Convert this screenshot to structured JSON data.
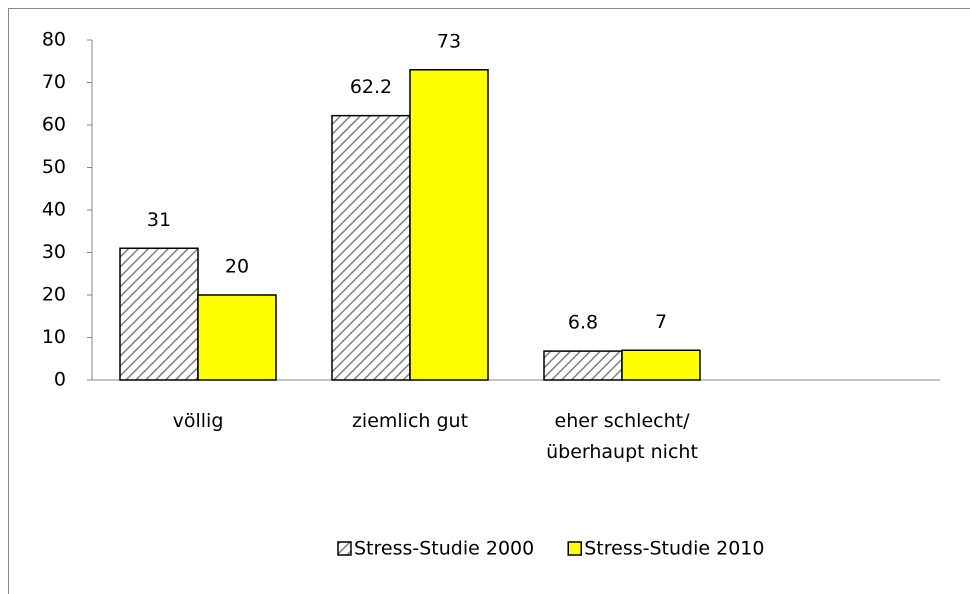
{
  "chart_data": {
    "type": "bar",
    "categories": [
      "völlig",
      "ziemlich gut",
      "eher schlecht/überhaupt nicht",
      null
    ],
    "series": [
      {
        "name": "Stress-Studie 2000",
        "color": "#808080",
        "pattern": "hatch",
        "values": [
          31,
          62.2,
          6.8,
          null
        ]
      },
      {
        "name": "Stress-Studie 2010",
        "color": "#ffff00",
        "values": [
          20,
          73,
          7,
          null
        ]
      }
    ],
    "ylim": [
      0,
      80
    ],
    "yticks": [
      0,
      10,
      20,
      30,
      40,
      50,
      60,
      70,
      80
    ],
    "grid": false,
    "legend": "bottom",
    "data_labels": true
  }
}
